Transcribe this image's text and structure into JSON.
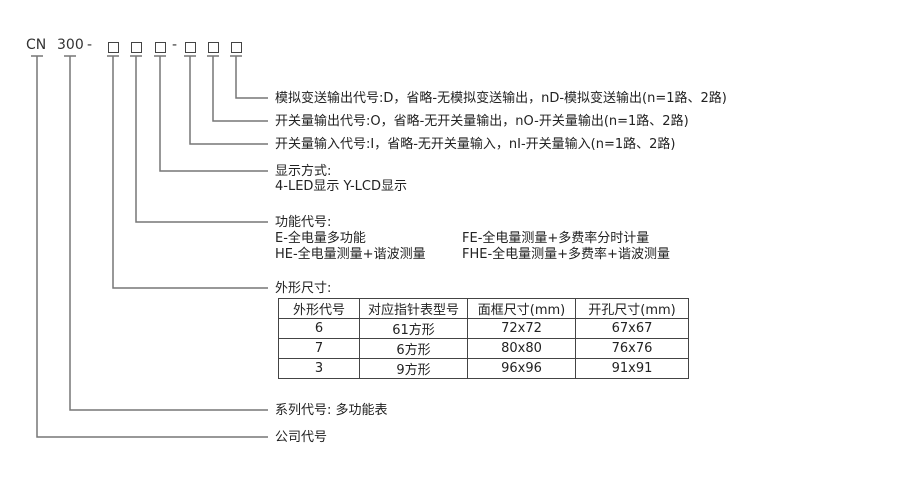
{
  "code": {
    "prefix": "CN",
    "series": "300",
    "dash": "-"
  },
  "labels": {
    "analog_output": "模拟变送输出代号:D，省略-无模拟变送输出，nD-模拟变送输出(n=1路、2路)",
    "switch_output": "开关量输出代号:O，省略-无开关量输出，nO-开关量输出(n=1路、2路)",
    "switch_input": "开关量输入代号:I，省略-无开关量输入，nI-开关量输入(n=1路、2路)",
    "display_title": "显示方式:",
    "display_desc": "4-LED显示  Y-LCD显示",
    "function_title": "功能代号:",
    "function_items": [
      "E-全电量多功能",
      "FE-全电量测量+多费率分时计量",
      "HE-全电量测量+谐波测量",
      "FHE-全电量测量+多费率+谐波测量"
    ],
    "size_title": "外形尺寸:",
    "series_desc": "系列代号: 多功能表",
    "company_desc": "公司代号"
  },
  "table": {
    "headers": [
      "外形代号",
      "对应指针表型号",
      "面框尺寸(mm)",
      "开孔尺寸(mm)"
    ],
    "rows": [
      [
        "6",
        "61方形",
        "72x72",
        "67x67"
      ],
      [
        "7",
        "6方形",
        "80x80",
        "76x76"
      ],
      [
        "3",
        "9方形",
        "96x96",
        "91x91"
      ]
    ]
  }
}
